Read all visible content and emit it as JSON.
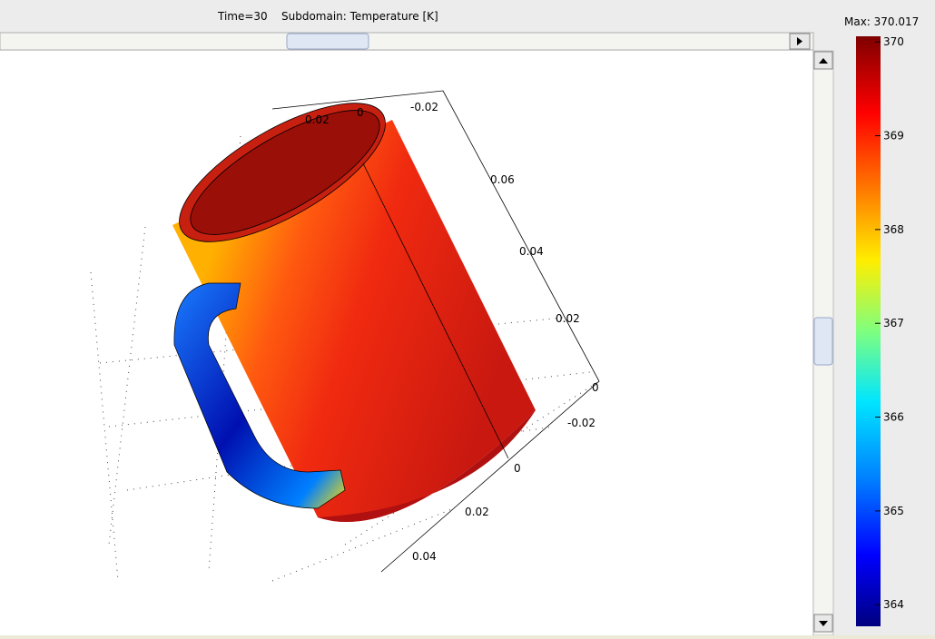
{
  "header": {
    "time": "Time=30",
    "subdomain": "Subdomain: Temperature [K]"
  },
  "plot": {
    "axis_labels": [
      "0.02",
      "0",
      "-0.02",
      "0.06",
      "0.04",
      "0.02",
      "0",
      "-0.02",
      "0",
      "0.02",
      "0.04"
    ]
  },
  "colorbar": {
    "max_label": "Max: 370.017",
    "lim": [
      363.77,
      370.06
    ],
    "ticks": [
      364,
      365,
      366,
      367,
      368,
      369,
      370
    ]
  }
}
